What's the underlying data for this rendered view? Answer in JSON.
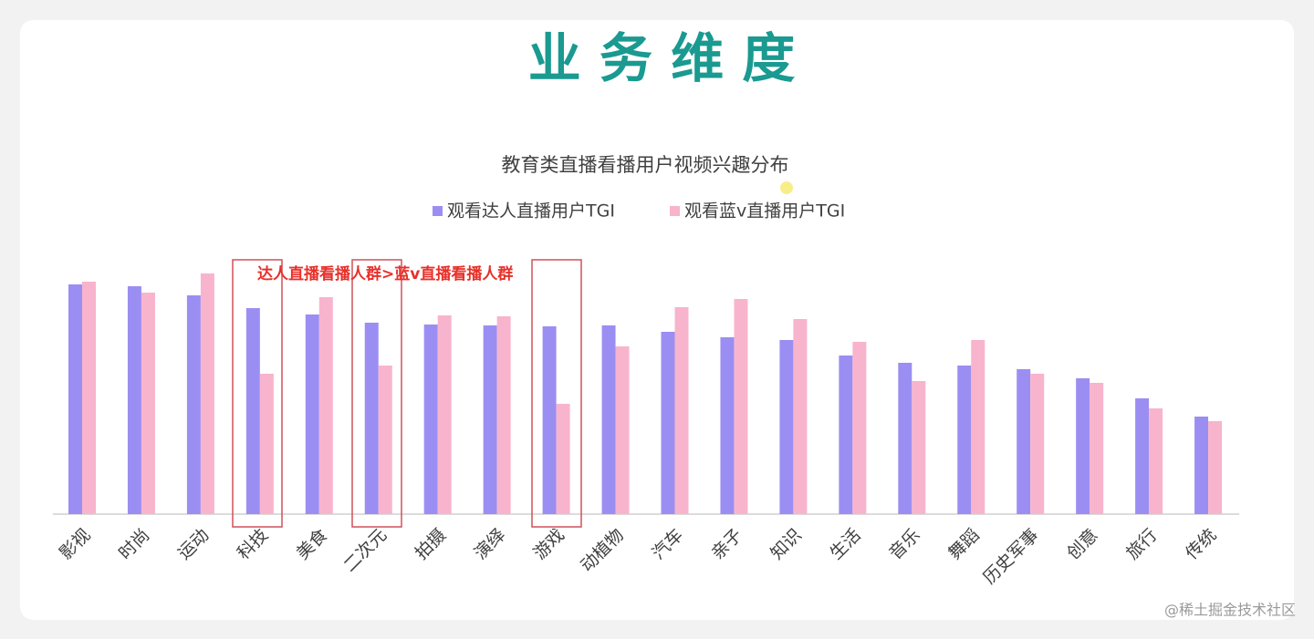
{
  "slide_title": "业 务 维 度",
  "watermark": "@稀土掘金技术社区",
  "chart_data": {
    "type": "bar",
    "title": "教育类直播看播用户视频兴趣分布",
    "annotation": "达人直播看播人群>蓝v直播看播人群",
    "legend": "top",
    "categories": [
      "影视",
      "时尚",
      "运动",
      "科技",
      "美食",
      "二次元",
      "拍摄",
      "演绎",
      "游戏",
      "动植物",
      "汽车",
      "亲子",
      "知识",
      "生活",
      "音乐",
      "舞蹈",
      "历史军事",
      "创意",
      "旅行",
      "传统"
    ],
    "series": [
      {
        "name": "观看达人直播用户TGI",
        "color": "#9b8ef3",
        "values": [
          252,
          250,
          240,
          226,
          219,
          210,
          208,
          207,
          206,
          207,
          200,
          194,
          191,
          174,
          166,
          163,
          159,
          149,
          127,
          107
        ]
      },
      {
        "name": "观看蓝v直播用户TGI",
        "color": "#f8b4cd",
        "values": [
          255,
          243,
          264,
          154,
          238,
          163,
          218,
          217,
          121,
          184,
          227,
          236,
          214,
          189,
          146,
          191,
          154,
          144,
          116,
          102
        ]
      }
    ]
  }
}
